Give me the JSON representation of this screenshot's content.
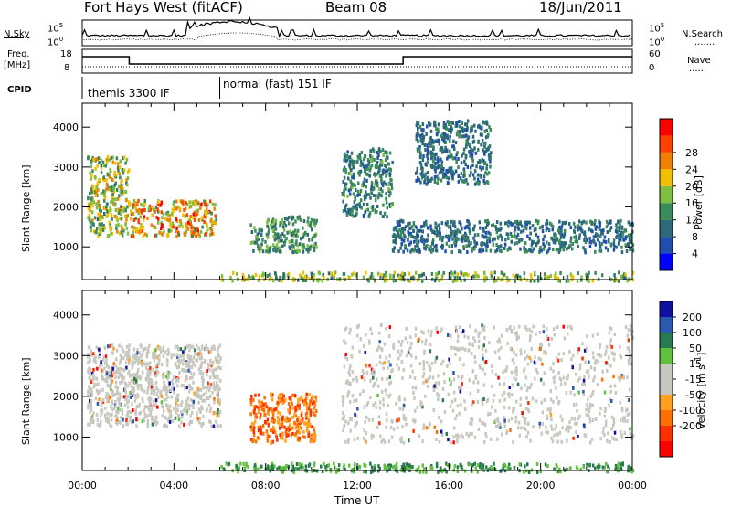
{
  "header": {
    "station": "Fort Hays West (fitACF)",
    "beam": "Beam 08",
    "date": "18/Jun/2011"
  },
  "summary": {
    "left_labels": [
      "N.Sky",
      "Freq.",
      "[MHz]",
      "CPID"
    ],
    "right_labels": [
      "N.Search",
      "Nave"
    ],
    "nsky_ticks": [
      "10^5",
      "10^0"
    ],
    "nsearch_ticks": [
      "10^5",
      "10^0"
    ],
    "freq_ticks": [
      "18",
      "8"
    ],
    "nave_ticks": [
      "60",
      "0"
    ],
    "cpid_modes": [
      {
        "label": "themis 3300 IF",
        "start_hour": 0,
        "end_hour": 6
      },
      {
        "label": "normal (fast) 151 IF",
        "start_hour": 6,
        "end_hour": 24
      }
    ]
  },
  "colors": {
    "power": [
      "#0000ff",
      "#1f4fae",
      "#2d6a79",
      "#3a8a5a",
      "#7fbf3f",
      "#f0c000",
      "#f08000",
      "#ff4000",
      "#ff0000"
    ],
    "velocity": [
      "#1010a0",
      "#2a5ab0",
      "#2a7a50",
      "#60c040",
      "#c8c8c0",
      "#c8c8c0",
      "#ffa020",
      "#ff7000",
      "#ff3000",
      "#ff0000"
    ]
  },
  "chart_data": [
    {
      "type": "heatmap",
      "title": "Power",
      "ylabel": "Slant Range [km]",
      "xlabel": "",
      "colorbar_label": "Power [dB]",
      "colorbar_ticks": [
        "4",
        "8",
        "12",
        "16",
        "20",
        "24",
        "28"
      ],
      "xlim": [
        0,
        24
      ],
      "ylim": [
        180,
        4600
      ],
      "yticks": [
        1000,
        2000,
        3000,
        4000
      ],
      "echo_regions": [
        {
          "x": [
            0.2,
            2.0
          ],
          "range": [
            1300,
            3300
          ],
          "peak_db": 22
        },
        {
          "x": [
            2.0,
            5.8
          ],
          "range": [
            1300,
            2200
          ],
          "peak_db": 28
        },
        {
          "x": [
            7.3,
            10.2
          ],
          "range": [
            900,
            1800
          ],
          "peak_db": 16
        },
        {
          "x": [
            11.3,
            13.5
          ],
          "range": [
            1800,
            3500
          ],
          "peak_db": 14
        },
        {
          "x": [
            13.5,
            24.0
          ],
          "range": [
            900,
            1700
          ],
          "peak_db": 12
        },
        {
          "x": [
            14.5,
            17.8
          ],
          "range": [
            2600,
            4200
          ],
          "peak_db": 12
        },
        {
          "x": [
            6.0,
            24.0
          ],
          "range": [
            180,
            400
          ],
          "peak_db": 20
        }
      ]
    },
    {
      "type": "heatmap",
      "title": "Velocity",
      "ylabel": "Slant Range [km]",
      "xlabel": "Time UT",
      "colorbar_label": "Velocity [m s^-1]",
      "colorbar_ticks": [
        "200",
        "100",
        "50",
        "15",
        "-15",
        "-50",
        "-100",
        "-200"
      ],
      "xlim": [
        0,
        24
      ],
      "ylim": [
        180,
        4600
      ],
      "yticks": [
        1000,
        2000,
        3000,
        4000
      ],
      "xticks": [
        "00:00",
        "04:00",
        "08:00",
        "12:00",
        "16:00",
        "20:00",
        "00:00"
      ],
      "echo_regions": [
        {
          "x": [
            0.2,
            6.0
          ],
          "range": [
            1300,
            3300
          ],
          "velocity": 0
        },
        {
          "x": [
            7.3,
            10.2
          ],
          "range": [
            900,
            2100
          ],
          "velocity": -80
        },
        {
          "x": [
            11.3,
            24.0
          ],
          "range": [
            900,
            3800
          ],
          "velocity": 0
        },
        {
          "x": [
            6.0,
            24.0
          ],
          "range": [
            180,
            400
          ],
          "velocity": 50
        }
      ]
    }
  ]
}
